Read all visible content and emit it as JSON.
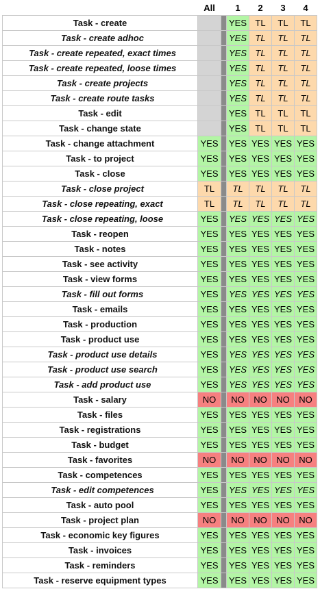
{
  "colors": {
    "yes": "#b3f5a5",
    "tl": "#fdd9ac",
    "no": "#f68080",
    "empty": "#d4d4d4",
    "separator": "#8a8a8a"
  },
  "headers": [
    "",
    "All",
    "1",
    "2",
    "3",
    "4"
  ],
  "rows": [
    {
      "name": "Task - create",
      "italic": false,
      "all": "",
      "groups": [
        "YES",
        "TL",
        "TL",
        "TL"
      ]
    },
    {
      "name": "Task - create adhoc",
      "italic": true,
      "all": "",
      "groups": [
        "YES",
        "TL",
        "TL",
        "TL"
      ]
    },
    {
      "name": "Task - create repeated, exact times",
      "italic": true,
      "all": "",
      "groups": [
        "YES",
        "TL",
        "TL",
        "TL"
      ]
    },
    {
      "name": "Task - create repeated, loose times",
      "italic": true,
      "all": "",
      "groups": [
        "YES",
        "TL",
        "TL",
        "TL"
      ]
    },
    {
      "name": "Task - create projects",
      "italic": true,
      "all": "",
      "groups": [
        "YES",
        "TL",
        "TL",
        "TL"
      ]
    },
    {
      "name": "Task - create route tasks",
      "italic": true,
      "all": "",
      "groups": [
        "YES",
        "TL",
        "TL",
        "TL"
      ]
    },
    {
      "name": "Task - edit",
      "italic": false,
      "all": "",
      "groups": [
        "YES",
        "TL",
        "TL",
        "TL"
      ]
    },
    {
      "name": "Task - change state",
      "italic": false,
      "all": "",
      "groups": [
        "YES",
        "TL",
        "TL",
        "TL"
      ]
    },
    {
      "name": "Task - change attachment",
      "italic": false,
      "all": "YES",
      "groups": [
        "YES",
        "YES",
        "YES",
        "YES"
      ]
    },
    {
      "name": "Task - to project",
      "italic": false,
      "all": "YES",
      "groups": [
        "YES",
        "YES",
        "YES",
        "YES"
      ]
    },
    {
      "name": "Task - close",
      "italic": false,
      "all": "YES",
      "groups": [
        "YES",
        "YES",
        "YES",
        "YES"
      ]
    },
    {
      "name": "Task - close project",
      "italic": true,
      "all": "TL",
      "groups": [
        "TL",
        "TL",
        "TL",
        "TL"
      ]
    },
    {
      "name": "Task - close repeating, exact",
      "italic": true,
      "all": "TL",
      "groups": [
        "TL",
        "TL",
        "TL",
        "TL"
      ]
    },
    {
      "name": "Task - close repeating, loose",
      "italic": true,
      "all": "YES",
      "groups": [
        "YES",
        "YES",
        "YES",
        "YES"
      ]
    },
    {
      "name": "Task - reopen",
      "italic": false,
      "all": "YES",
      "groups": [
        "YES",
        "YES",
        "YES",
        "YES"
      ]
    },
    {
      "name": "Task - notes",
      "italic": false,
      "all": "YES",
      "groups": [
        "YES",
        "YES",
        "YES",
        "YES"
      ]
    },
    {
      "name": "Task - see activity",
      "italic": false,
      "all": "YES",
      "groups": [
        "YES",
        "YES",
        "YES",
        "YES"
      ]
    },
    {
      "name": "Task - view forms",
      "italic": false,
      "all": "YES",
      "groups": [
        "YES",
        "YES",
        "YES",
        "YES"
      ]
    },
    {
      "name": "Task - fill out forms",
      "italic": true,
      "all": "YES",
      "groups": [
        "YES",
        "YES",
        "YES",
        "YES"
      ]
    },
    {
      "name": "Task - emails",
      "italic": false,
      "all": "YES",
      "groups": [
        "YES",
        "YES",
        "YES",
        "YES"
      ]
    },
    {
      "name": "Task - production",
      "italic": false,
      "all": "YES",
      "groups": [
        "YES",
        "YES",
        "YES",
        "YES"
      ]
    },
    {
      "name": "Task - product use",
      "italic": false,
      "all": "YES",
      "groups": [
        "YES",
        "YES",
        "YES",
        "YES"
      ]
    },
    {
      "name": "Task - product use details",
      "italic": true,
      "all": "YES",
      "groups": [
        "YES",
        "YES",
        "YES",
        "YES"
      ]
    },
    {
      "name": "Task - product use search",
      "italic": true,
      "all": "YES",
      "groups": [
        "YES",
        "YES",
        "YES",
        "YES"
      ]
    },
    {
      "name": "Task - add product use",
      "italic": true,
      "all": "YES",
      "groups": [
        "YES",
        "YES",
        "YES",
        "YES"
      ]
    },
    {
      "name": "Task - salary",
      "italic": false,
      "all": "NO",
      "groups": [
        "NO",
        "NO",
        "NO",
        "NO"
      ]
    },
    {
      "name": "Task - files",
      "italic": false,
      "all": "YES",
      "groups": [
        "YES",
        "YES",
        "YES",
        "YES"
      ]
    },
    {
      "name": "Task - registrations",
      "italic": false,
      "all": "YES",
      "groups": [
        "YES",
        "YES",
        "YES",
        "YES"
      ]
    },
    {
      "name": "Task - budget",
      "italic": false,
      "all": "YES",
      "groups": [
        "YES",
        "YES",
        "YES",
        "YES"
      ]
    },
    {
      "name": "Task - favorites",
      "italic": false,
      "all": "NO",
      "groups": [
        "NO",
        "NO",
        "NO",
        "NO"
      ]
    },
    {
      "name": "Task - competences",
      "italic": false,
      "all": "YES",
      "groups": [
        "YES",
        "YES",
        "YES",
        "YES"
      ]
    },
    {
      "name": "Task - edit competences",
      "italic": true,
      "all": "YES",
      "groups": [
        "YES",
        "YES",
        "YES",
        "YES"
      ]
    },
    {
      "name": "Task - auto pool",
      "italic": false,
      "all": "YES",
      "groups": [
        "YES",
        "YES",
        "YES",
        "YES"
      ]
    },
    {
      "name": "Task - project plan",
      "italic": false,
      "all": "NO",
      "groups": [
        "NO",
        "NO",
        "NO",
        "NO"
      ]
    },
    {
      "name": "Task - economic key figures",
      "italic": false,
      "all": "YES",
      "groups": [
        "YES",
        "YES",
        "YES",
        "YES"
      ]
    },
    {
      "name": "Task - invoices",
      "italic": false,
      "all": "YES",
      "groups": [
        "YES",
        "YES",
        "YES",
        "YES"
      ]
    },
    {
      "name": "Task - reminders",
      "italic": false,
      "all": "YES",
      "groups": [
        "YES",
        "YES",
        "YES",
        "YES"
      ]
    },
    {
      "name": "Task - reserve equipment types",
      "italic": false,
      "all": "YES",
      "groups": [
        "YES",
        "YES",
        "YES",
        "YES"
      ]
    }
  ]
}
